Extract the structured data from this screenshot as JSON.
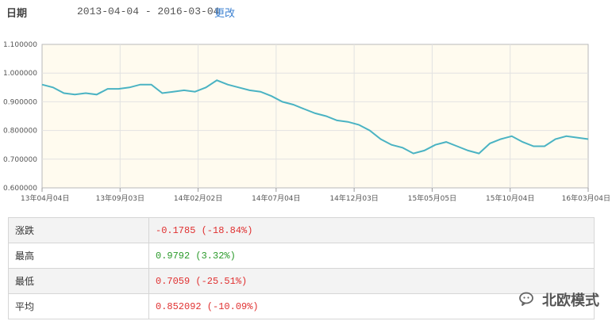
{
  "date_filter": {
    "label": "日期",
    "range": "2013-04-04 - 2016-03-04",
    "change_link": "更改"
  },
  "chart_data": {
    "type": "line",
    "title": "",
    "xlabel": "",
    "ylabel": "",
    "ylim": [
      0.6,
      1.1
    ],
    "y_ticks": [
      "0.600000",
      "0.700000",
      "0.800000",
      "0.900000",
      "1.000000",
      "1.100000"
    ],
    "x_ticks": [
      "13年04月04日",
      "13年09月03日",
      "14年02月02日",
      "14年07月04日",
      "14年12月03日",
      "15年05月05日",
      "15年10月04日",
      "16年03月04日"
    ],
    "grid": true,
    "line_color": "#4ab3c3",
    "x": [
      0,
      0.02,
      0.04,
      0.06,
      0.08,
      0.1,
      0.12,
      0.14,
      0.16,
      0.18,
      0.2,
      0.22,
      0.24,
      0.26,
      0.28,
      0.3,
      0.32,
      0.34,
      0.36,
      0.38,
      0.4,
      0.42,
      0.44,
      0.46,
      0.48,
      0.5,
      0.52,
      0.54,
      0.56,
      0.58,
      0.6,
      0.62,
      0.64,
      0.66,
      0.68,
      0.7,
      0.72,
      0.74,
      0.76,
      0.78,
      0.8,
      0.82,
      0.84,
      0.86,
      0.88,
      0.9,
      0.92,
      0.94,
      0.96,
      0.98,
      1.0
    ],
    "values": [
      0.96,
      0.95,
      0.93,
      0.925,
      0.93,
      0.925,
      0.945,
      0.945,
      0.95,
      0.96,
      0.96,
      0.93,
      0.935,
      0.94,
      0.935,
      0.95,
      0.975,
      0.96,
      0.95,
      0.94,
      0.935,
      0.92,
      0.9,
      0.89,
      0.875,
      0.86,
      0.85,
      0.835,
      0.83,
      0.82,
      0.8,
      0.77,
      0.75,
      0.74,
      0.72,
      0.73,
      0.75,
      0.76,
      0.745,
      0.73,
      0.72,
      0.755,
      0.77,
      0.78,
      0.76,
      0.745,
      0.745,
      0.77,
      0.78,
      0.775,
      0.77
    ]
  },
  "stats": [
    {
      "name": "涨跌",
      "value": "-0.1785 (-18.84%)",
      "color": "#e03030"
    },
    {
      "name": "最高",
      "value": "0.9792 (3.32%)",
      "color": "#2a9a2a"
    },
    {
      "name": "最低",
      "value": "0.7059 (-25.51%)",
      "color": "#e03030"
    },
    {
      "name": "平均",
      "value": "0.852092 (-10.09%)",
      "color": "#e03030"
    }
  ],
  "watermark": {
    "text": "北欧模式",
    "icon": "wechat-icon"
  }
}
